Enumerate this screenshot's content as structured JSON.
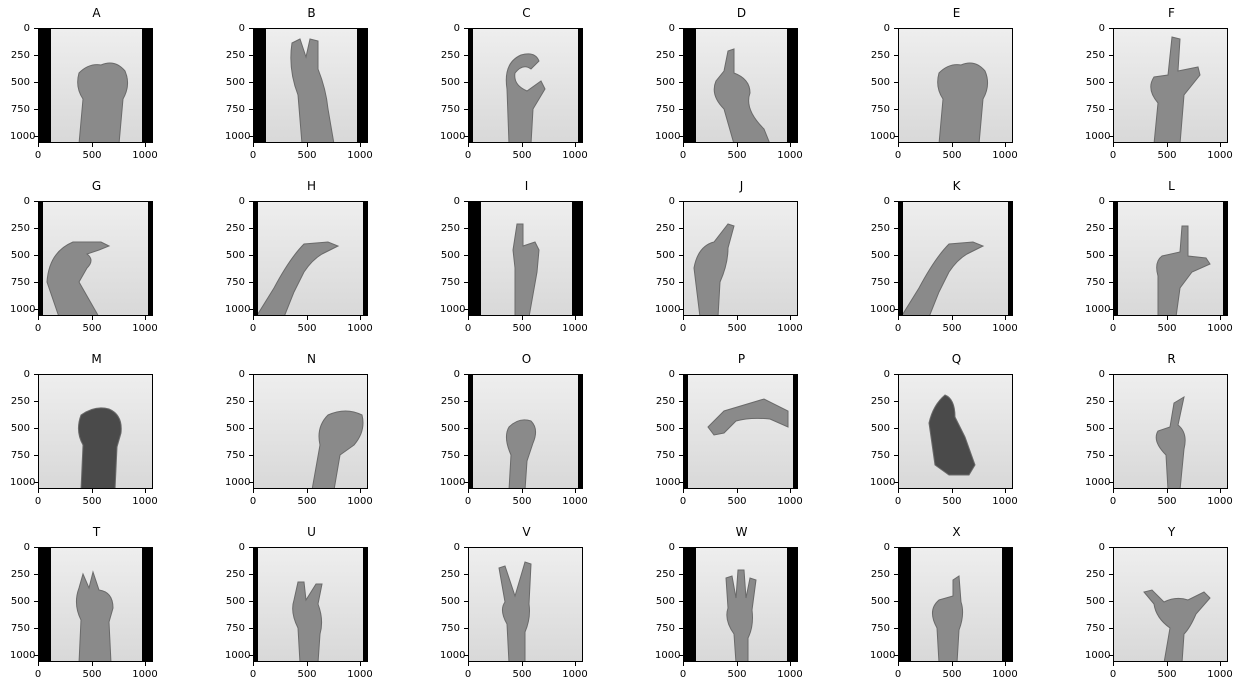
{
  "figure": {
    "yticks": [
      "0",
      "250",
      "500",
      "750",
      "1000"
    ],
    "xticks": [
      "0",
      "500",
      "1000"
    ],
    "panels": [
      {
        "title": "A",
        "pose": "fist",
        "bars": "both"
      },
      {
        "title": "B",
        "pose": "flat",
        "bars": "both"
      },
      {
        "title": "C",
        "pose": "curve",
        "bars": "thin"
      },
      {
        "title": "D",
        "pose": "index",
        "bars": "both"
      },
      {
        "title": "E",
        "pose": "fist",
        "bars": "none"
      },
      {
        "title": "F",
        "pose": "three",
        "bars": "none"
      },
      {
        "title": "G",
        "pose": "side",
        "bars": "thin"
      },
      {
        "title": "H",
        "pose": "side2",
        "bars": "thin"
      },
      {
        "title": "I",
        "pose": "pinky",
        "bars": "both"
      },
      {
        "title": "J",
        "pose": "pinky_side",
        "bars": "none"
      },
      {
        "title": "K",
        "pose": "side2",
        "bars": "thin"
      },
      {
        "title": "L",
        "pose": "L",
        "bars": "thin"
      },
      {
        "title": "M",
        "pose": "fist_dark",
        "bars": "none"
      },
      {
        "title": "N",
        "pose": "fist_right",
        "bars": "none"
      },
      {
        "title": "O",
        "pose": "o",
        "bars": "thin"
      },
      {
        "title": "P",
        "pose": "down",
        "bars": "thin"
      },
      {
        "title": "Q",
        "pose": "down2",
        "bars": "none"
      },
      {
        "title": "R",
        "pose": "cross",
        "bars": "none"
      },
      {
        "title": "T",
        "pose": "fist_up",
        "bars": "both"
      },
      {
        "title": "U",
        "pose": "two",
        "bars": "thin"
      },
      {
        "title": "V",
        "pose": "vee",
        "bars": "none"
      },
      {
        "title": "W",
        "pose": "three_up",
        "bars": "both"
      },
      {
        "title": "X",
        "pose": "hook",
        "bars": "both"
      },
      {
        "title": "Y",
        "pose": "shaka",
        "bars": "none"
      }
    ]
  }
}
